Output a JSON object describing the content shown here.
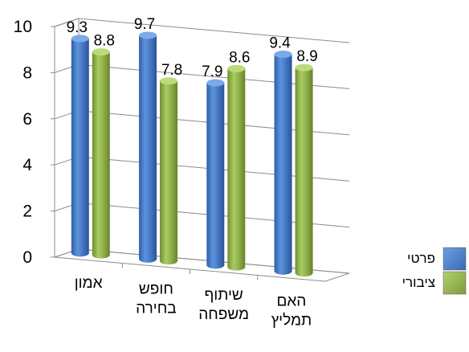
{
  "chart_data": {
    "type": "bar",
    "title": "",
    "xlabel": "",
    "ylabel": "",
    "ylim": [
      0,
      10
    ],
    "yticks": [
      0,
      2,
      4,
      6,
      8,
      10
    ],
    "grid": true,
    "legend_position": "right",
    "categories": [
      [
        "אמון"
      ],
      [
        "חופש",
        "בחירה"
      ],
      [
        "שיתוף",
        "משפחה"
      ],
      [
        "האם",
        "תמליץ"
      ]
    ],
    "series": [
      {
        "name": "פרטי",
        "values": [
          9.3,
          9.7,
          7.9,
          9.4
        ],
        "labels": [
          "9.3",
          "9.7",
          "7.9",
          "9.4"
        ],
        "color": "#4a7dc9"
      },
      {
        "name": "ציבורי",
        "values": [
          8.8,
          7.8,
          8.6,
          8.9
        ],
        "labels": [
          "8.8",
          "7.8",
          "8.6",
          "8.9"
        ],
        "color": "#93b54c"
      }
    ]
  }
}
